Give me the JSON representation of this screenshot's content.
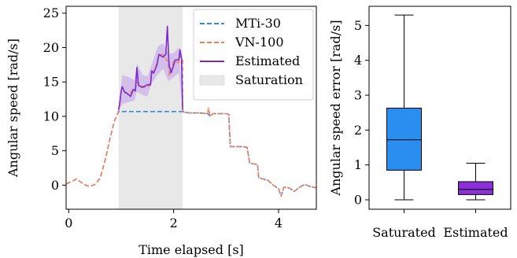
{
  "chart_data": [
    {
      "type": "line",
      "xlabel": "Time elapsed [s]",
      "ylabel": "Angular speed [rad/s]",
      "xlim": [
        -0.05,
        4.72
      ],
      "ylim": [
        -3.5,
        26.0
      ],
      "xticks": [
        0,
        2,
        4
      ],
      "yticks": [
        0,
        5,
        10,
        15,
        20,
        25
      ],
      "grid": false,
      "legend_position": "top-right",
      "saturation_region": {
        "start": 0.95,
        "end": 2.17,
        "label": "Saturation",
        "color": "#e8e8e8"
      },
      "estimate_band": {
        "x": [
          0.95,
          1.02,
          1.15,
          1.25,
          1.3,
          1.4,
          1.5,
          1.58,
          1.7,
          1.8,
          1.9,
          2.0,
          2.1,
          2.17
        ],
        "lower": [
          10.9,
          11.8,
          12.1,
          12.3,
          13.6,
          13.1,
          12.9,
          14.8,
          16.1,
          16.9,
          15.1,
          15.7,
          16.3,
          10.9
        ],
        "upper": [
          10.9,
          16.0,
          15.7,
          15.3,
          17.7,
          16.1,
          15.8,
          17.6,
          20.2,
          20.6,
          19.1,
          19.2,
          20.1,
          10.9
        ],
        "color": "#cbb3ec"
      },
      "series": [
        {
          "name": "MTi-30",
          "color": "#2a8ef0",
          "dash": "dashed",
          "points": [
            [
              -0.05,
              0.2
            ],
            [
              0.05,
              0.5
            ],
            [
              0.15,
              0.9
            ],
            [
              0.22,
              0.5
            ],
            [
              0.32,
              0.0
            ],
            [
              0.4,
              -0.2
            ],
            [
              0.5,
              0.1
            ],
            [
              0.6,
              1.0
            ],
            [
              0.7,
              3.8
            ],
            [
              0.8,
              7.2
            ],
            [
              0.87,
              9.3
            ],
            [
              0.93,
              10.3
            ],
            [
              0.95,
              10.7
            ],
            [
              1.5,
              10.7
            ],
            [
              2.0,
              10.7
            ],
            [
              2.16,
              10.7
            ],
            [
              2.2,
              10.6
            ],
            [
              2.3,
              10.5
            ],
            [
              2.5,
              10.5
            ],
            [
              2.65,
              10.4
            ],
            [
              2.7,
              10.0
            ],
            [
              2.75,
              10.4
            ],
            [
              3.0,
              10.4
            ],
            [
              3.05,
              10.3
            ],
            [
              3.08,
              5.6
            ],
            [
              3.3,
              5.6
            ],
            [
              3.4,
              5.5
            ],
            [
              3.45,
              3.2
            ],
            [
              3.6,
              3.0
            ],
            [
              3.62,
              1.1
            ],
            [
              3.7,
              0.9
            ],
            [
              3.8,
              0.7
            ],
            [
              3.9,
              0.0
            ],
            [
              4.0,
              -0.5
            ],
            [
              4.05,
              -1.6
            ],
            [
              4.1,
              -0.3
            ],
            [
              4.2,
              -0.4
            ],
            [
              4.3,
              -0.9
            ],
            [
              4.4,
              -0.3
            ],
            [
              4.5,
              0.1
            ],
            [
              4.6,
              -0.2
            ],
            [
              4.72,
              -0.4
            ]
          ]
        },
        {
          "name": "VN-100",
          "color": "#f57f52",
          "dash": "dashed",
          "points": [
            [
              -0.05,
              0.2
            ],
            [
              0.05,
              0.5
            ],
            [
              0.15,
              0.9
            ],
            [
              0.22,
              0.5
            ],
            [
              0.32,
              0.0
            ],
            [
              0.4,
              -0.2
            ],
            [
              0.5,
              0.1
            ],
            [
              0.6,
              1.0
            ],
            [
              0.7,
              3.8
            ],
            [
              0.8,
              7.2
            ],
            [
              0.87,
              9.3
            ],
            [
              0.93,
              10.3
            ],
            [
              0.95,
              10.9
            ],
            [
              0.97,
              11.5
            ],
            [
              1.0,
              13.8
            ],
            [
              1.05,
              13.5
            ],
            [
              1.15,
              13.2
            ],
            [
              1.22,
              13.8
            ],
            [
              1.26,
              13.7
            ],
            [
              1.3,
              15.0
            ],
            [
              1.38,
              14.5
            ],
            [
              1.45,
              14.2
            ],
            [
              1.55,
              14.5
            ],
            [
              1.58,
              16.0
            ],
            [
              1.65,
              17.0
            ],
            [
              1.72,
              18.9
            ],
            [
              1.8,
              19.0
            ],
            [
              1.85,
              18.5
            ],
            [
              1.9,
              17.5
            ],
            [
              1.92,
              16.0
            ],
            [
              1.97,
              17.0
            ],
            [
              2.0,
              18.0
            ],
            [
              2.1,
              17.8
            ],
            [
              2.12,
              18.8
            ],
            [
              2.17,
              18.3
            ],
            [
              2.17,
              10.9
            ],
            [
              2.2,
              10.6
            ],
            [
              2.3,
              10.5
            ],
            [
              2.5,
              10.5
            ],
            [
              2.65,
              10.4
            ],
            [
              2.66,
              11.2
            ],
            [
              2.7,
              10.0
            ],
            [
              2.75,
              10.4
            ],
            [
              3.0,
              10.4
            ],
            [
              3.05,
              10.3
            ],
            [
              3.08,
              5.6
            ],
            [
              3.3,
              5.6
            ],
            [
              3.4,
              5.5
            ],
            [
              3.45,
              3.2
            ],
            [
              3.6,
              3.0
            ],
            [
              3.62,
              1.1
            ],
            [
              3.7,
              0.9
            ],
            [
              3.8,
              0.7
            ],
            [
              3.9,
              0.0
            ],
            [
              4.0,
              -0.5
            ],
            [
              4.05,
              -1.6
            ],
            [
              4.1,
              -0.3
            ],
            [
              4.2,
              -0.4
            ],
            [
              4.3,
              -0.9
            ],
            [
              4.4,
              -0.3
            ],
            [
              4.5,
              0.1
            ],
            [
              4.6,
              -0.2
            ],
            [
              4.72,
              -0.4
            ]
          ]
        },
        {
          "name": "Estimated",
          "color": "#7a2ad0",
          "dash": "solid",
          "points": [
            [
              0.95,
              10.9
            ],
            [
              0.97,
              11.8
            ],
            [
              1.0,
              13.7
            ],
            [
              1.02,
              14.3
            ],
            [
              1.06,
              13.6
            ],
            [
              1.12,
              13.3
            ],
            [
              1.18,
              12.9
            ],
            [
              1.23,
              13.9
            ],
            [
              1.27,
              13.7
            ],
            [
              1.3,
              17.1
            ],
            [
              1.33,
              14.5
            ],
            [
              1.4,
              14.2
            ],
            [
              1.5,
              14.6
            ],
            [
              1.56,
              14.6
            ],
            [
              1.58,
              16.6
            ],
            [
              1.62,
              16.3
            ],
            [
              1.68,
              17.4
            ],
            [
              1.72,
              19.0
            ],
            [
              1.76,
              18.8
            ],
            [
              1.8,
              18.6
            ],
            [
              1.85,
              19.0
            ],
            [
              1.88,
              23.1
            ],
            [
              1.91,
              17.6
            ],
            [
              1.95,
              16.3
            ],
            [
              1.99,
              17.2
            ],
            [
              2.03,
              18.2
            ],
            [
              2.1,
              18.2
            ],
            [
              2.12,
              19.7
            ],
            [
              2.15,
              18.4
            ],
            [
              2.17,
              11.0
            ]
          ]
        }
      ]
    },
    {
      "type": "box",
      "ylabel": "Angular speed error [rad/s]",
      "ylim": [
        -0.27,
        5.55
      ],
      "yticks": [
        0,
        1,
        2,
        3,
        4,
        5
      ],
      "categories": [
        "Saturated",
        "Estimated"
      ],
      "boxes": [
        {
          "label": "Saturated",
          "min": 0.0,
          "q1": 0.85,
          "median": 1.72,
          "q3": 2.63,
          "max": 5.3,
          "color": "#2a8ef0"
        },
        {
          "label": "Estimated",
          "min": 0.0,
          "q1": 0.15,
          "median": 0.3,
          "q3": 0.52,
          "max": 1.05,
          "color": "#8b2fdb"
        }
      ]
    }
  ]
}
